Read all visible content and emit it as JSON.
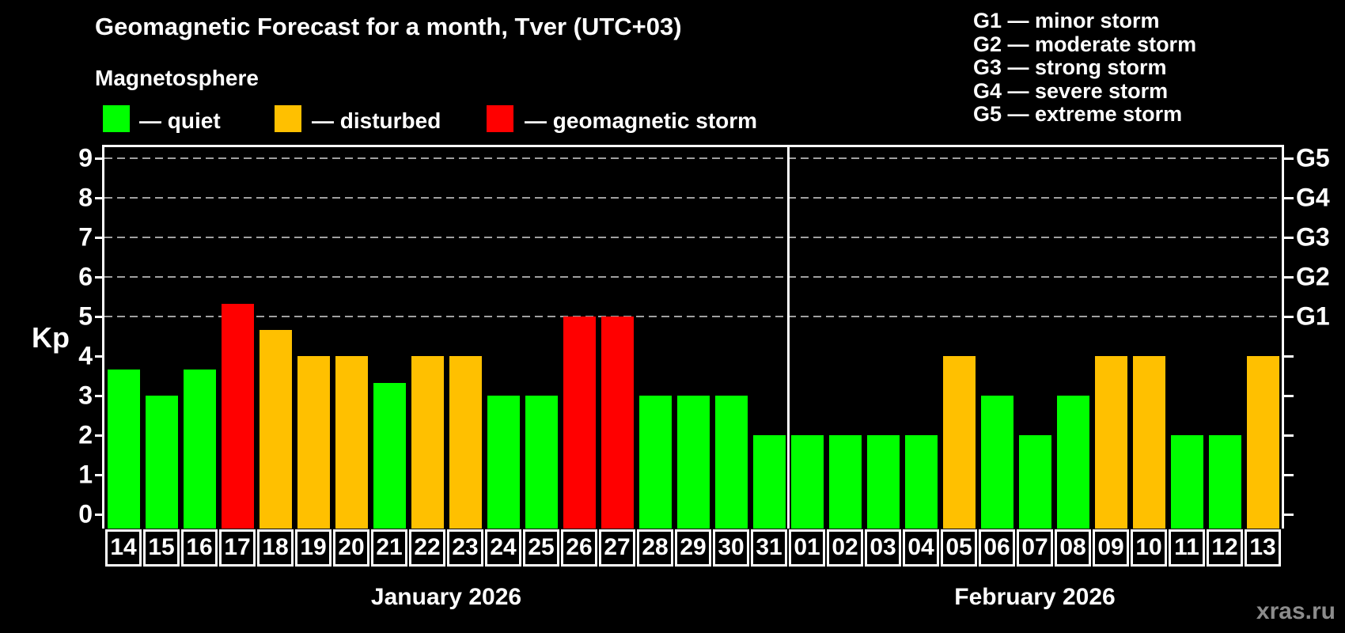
{
  "header": {
    "title": "Geomagnetic Forecast for a month, Tver (UTC+03)",
    "subtitle": "Magnetosphere",
    "watermark": "xras.ru"
  },
  "legend": {
    "items": [
      {
        "status": "quiet",
        "label": "— quiet",
        "color": "#00ff00"
      },
      {
        "status": "disturbed",
        "label": "— disturbed",
        "color": "#ffc000"
      },
      {
        "status": "storm",
        "label": "— geomagnetic storm",
        "color": "#ff0000"
      }
    ]
  },
  "g_legend": {
    "lines": [
      "G1 — minor storm",
      "G2 — moderate storm",
      "G3 — strong storm",
      "G4 — severe storm",
      "G5 — extreme storm"
    ]
  },
  "chart_data": {
    "type": "bar",
    "title": "Geomagnetic Forecast for a month, Tver (UTC+03)",
    "ylabel": "Kp",
    "ylim": [
      0,
      9
    ],
    "y_ticks": [
      0,
      1,
      2,
      3,
      4,
      5,
      6,
      7,
      8,
      9
    ],
    "grid_levels_kp": [
      5,
      6,
      7,
      8,
      9
    ],
    "grid": "dashed-horizontal",
    "legend_position": "top",
    "right_axis_labels": [
      {
        "label": "G1",
        "kp": 5
      },
      {
        "label": "G2",
        "kp": 6
      },
      {
        "label": "G3",
        "kp": 7
      },
      {
        "label": "G4",
        "kp": 8
      },
      {
        "label": "G5",
        "kp": 9
      }
    ],
    "colors": {
      "quiet": "#00ff00",
      "disturbed": "#ffc000",
      "storm": "#ff0000"
    },
    "months": [
      {
        "name": "January 2026",
        "days": [
          {
            "day": "14",
            "kp": 3.67,
            "status": "quiet"
          },
          {
            "day": "15",
            "kp": 3,
            "status": "quiet"
          },
          {
            "day": "16",
            "kp": 3.67,
            "status": "quiet"
          },
          {
            "day": "17",
            "kp": 5.33,
            "status": "storm"
          },
          {
            "day": "18",
            "kp": 4.67,
            "status": "disturbed"
          },
          {
            "day": "19",
            "kp": 4,
            "status": "disturbed"
          },
          {
            "day": "20",
            "kp": 4,
            "status": "disturbed"
          },
          {
            "day": "21",
            "kp": 3.33,
            "status": "quiet"
          },
          {
            "day": "22",
            "kp": 4,
            "status": "disturbed"
          },
          {
            "day": "23",
            "kp": 4,
            "status": "disturbed"
          },
          {
            "day": "24",
            "kp": 3,
            "status": "quiet"
          },
          {
            "day": "25",
            "kp": 3,
            "status": "quiet"
          },
          {
            "day": "26",
            "kp": 5,
            "status": "storm"
          },
          {
            "day": "27",
            "kp": 5,
            "status": "storm"
          },
          {
            "day": "28",
            "kp": 3,
            "status": "quiet"
          },
          {
            "day": "29",
            "kp": 3,
            "status": "quiet"
          },
          {
            "day": "30",
            "kp": 3,
            "status": "quiet"
          },
          {
            "day": "31",
            "kp": 2,
            "status": "quiet"
          }
        ]
      },
      {
        "name": "February 2026",
        "days": [
          {
            "day": "01",
            "kp": 2,
            "status": "quiet"
          },
          {
            "day": "02",
            "kp": 2,
            "status": "quiet"
          },
          {
            "day": "03",
            "kp": 2,
            "status": "quiet"
          },
          {
            "day": "04",
            "kp": 2,
            "status": "quiet"
          },
          {
            "day": "05",
            "kp": 4,
            "status": "disturbed"
          },
          {
            "day": "06",
            "kp": 3,
            "status": "quiet"
          },
          {
            "day": "07",
            "kp": 2,
            "status": "quiet"
          },
          {
            "day": "08",
            "kp": 3,
            "status": "quiet"
          },
          {
            "day": "09",
            "kp": 4,
            "status": "disturbed"
          },
          {
            "day": "10",
            "kp": 4,
            "status": "disturbed"
          },
          {
            "day": "11",
            "kp": 2,
            "status": "quiet"
          },
          {
            "day": "12",
            "kp": 2,
            "status": "quiet"
          },
          {
            "day": "13",
            "kp": 4,
            "status": "disturbed"
          }
        ]
      }
    ]
  }
}
